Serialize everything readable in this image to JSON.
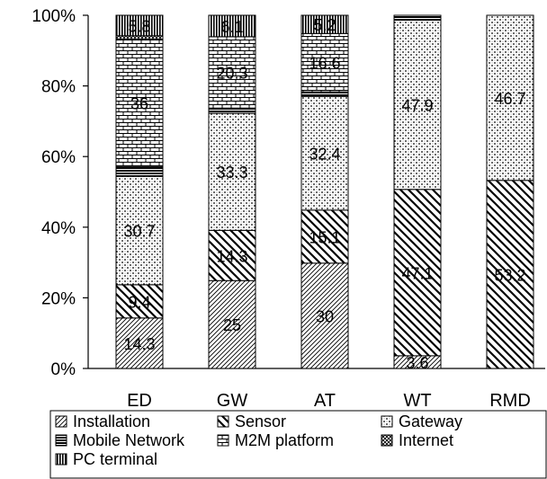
{
  "chart_data": {
    "type": "bar",
    "stacked": true,
    "percent_stacked": true,
    "categories": [
      "ED",
      "GW",
      "AT",
      "WT",
      "RMD"
    ],
    "y_ticks": [
      "0%",
      "20%",
      "40%",
      "60%",
      "80%",
      "100%"
    ],
    "ylim": [
      0,
      100
    ],
    "series": [
      {
        "name": "Installation",
        "values": [
          14.3,
          25,
          30,
          3.6,
          0
        ],
        "labels": [
          "14.3",
          "25",
          "30",
          "3.6",
          ""
        ]
      },
      {
        "name": "Sensor",
        "values": [
          9.4,
          14.3,
          15.1,
          47.1,
          53.2
        ],
        "labels": [
          "9.4",
          "14.3",
          "15.1",
          "47.1",
          "53.2"
        ]
      },
      {
        "name": "Gateway",
        "values": [
          30.7,
          33.3,
          32.4,
          47.9,
          46.7
        ],
        "labels": [
          "30.7",
          "33.3",
          "32.4",
          "47.9",
          "46.7"
        ]
      },
      {
        "name": "Mobile Network",
        "values": [
          2.8,
          1.5,
          1.3,
          1.4,
          0
        ],
        "labels": [
          "",
          "",
          "",
          "",
          ""
        ]
      },
      {
        "name": "M2M platform",
        "values": [
          36,
          20.3,
          16.6,
          0,
          0
        ],
        "labels": [
          "36",
          "20.3",
          "16.6",
          "",
          ""
        ]
      },
      {
        "name": "Internet",
        "values": [
          1,
          0,
          0,
          0,
          0
        ],
        "labels": [
          "",
          "",
          "",
          "",
          ""
        ]
      },
      {
        "name": "PC terminal",
        "values": [
          5.8,
          6.1,
          5.2,
          0,
          0
        ],
        "labels": [
          "5.8",
          "6.1",
          "5.2",
          "",
          ""
        ]
      }
    ],
    "legend_position": "bottom",
    "grid": false
  }
}
